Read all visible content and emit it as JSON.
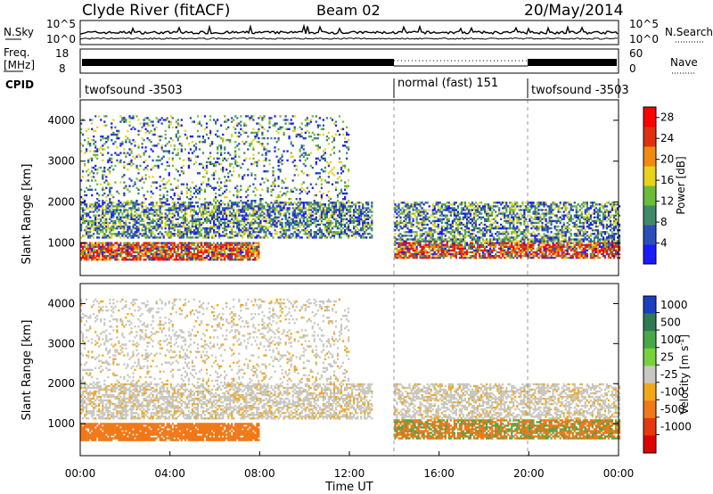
{
  "header": {
    "title": "Clyde River (fitACF)",
    "beam": "Beam 02",
    "date": "20/May/2014"
  },
  "panels": {
    "nsky": {
      "left_label": "N.Sky",
      "right_label": "N.Search",
      "left_ticks": [
        "10^5",
        "10^0"
      ],
      "right_ticks": [
        "10^5",
        "10^0"
      ]
    },
    "freq": {
      "left_label_1": "Freq.",
      "left_label_2": "[MHz]",
      "right_label": "Nave",
      "left_ticks": [
        "18",
        "8"
      ],
      "right_ticks": [
        "60",
        "0"
      ]
    },
    "cpid": {
      "label": "CPID",
      "segments": [
        {
          "name": "twofsound -3503",
          "start_hour": 0,
          "end_hour": 14
        },
        {
          "name": "normal (fast) 151",
          "start_hour": 14,
          "end_hour": 20
        },
        {
          "name": "twofsound -3503",
          "start_hour": 20,
          "end_hour": 24
        }
      ]
    }
  },
  "chart_data": [
    {
      "type": "heatmap",
      "name": "power",
      "xlabel": "",
      "ylabel": "Slant Range [km]",
      "x_range_hours": [
        0,
        24
      ],
      "ylim": [
        200,
        4500
      ],
      "y_ticks": [
        1000,
        2000,
        3000,
        4000
      ],
      "colorbar": {
        "label": "Power [dB]",
        "ticks": [
          4,
          8,
          12,
          16,
          20,
          24,
          28
        ],
        "range": [
          0,
          30
        ],
        "colors": [
          "#1a1aff",
          "#2a4fb8",
          "#3f8a6a",
          "#6dbb3a",
          "#e8d21a",
          "#f08a10",
          "#e03010",
          "#ff0000"
        ]
      },
      "notes": "Strong scatter (20-30 dB) near 600-1000 km before 08:00 UT and after 14:00 UT; bands at 1200-2000 km; weak patches up to 4000 km."
    },
    {
      "type": "heatmap",
      "name": "velocity",
      "xlabel": "Time UT",
      "ylabel": "Slant Range [km]",
      "x_range_hours": [
        0,
        24
      ],
      "x_ticks": [
        "00:00",
        "04:00",
        "08:00",
        "12:00",
        "16:00",
        "20:00",
        "00:00"
      ],
      "ylim": [
        200,
        4500
      ],
      "y_ticks": [
        1000,
        2000,
        3000,
        4000
      ],
      "colorbar": {
        "label": "Velocity [m s^-1]",
        "ticks": [
          "1000",
          "500",
          "100",
          "25",
          "-25",
          "-100",
          "-500",
          "-1000"
        ],
        "colors": [
          "#1c3fc0",
          "#2f7a55",
          "#48a848",
          "#78d23c",
          "#c8c8c0",
          "#f0a818",
          "#f07818",
          "#e83810",
          "#e00000"
        ]
      },
      "notes": "Orange (negative, -100 to -500 m/s) near 600-1000 km; grey (near zero) bands at 1200-2000 km; green patches after 14:00 UT."
    }
  ],
  "axes": {
    "xlabel": "Time UT",
    "x_ticks": [
      "00:00",
      "04:00",
      "08:00",
      "12:00",
      "16:00",
      "20:00",
      "00:00"
    ],
    "y_label": "Slant Range [km]",
    "y_ticks": [
      "1000",
      "2000",
      "3000",
      "4000"
    ],
    "power_cbar_label": "Power [dB]",
    "velocity_cbar_label_main": "Velocity [m s",
    "velocity_cbar_label_sup": "-1",
    "velocity_cbar_label_end": "]"
  }
}
